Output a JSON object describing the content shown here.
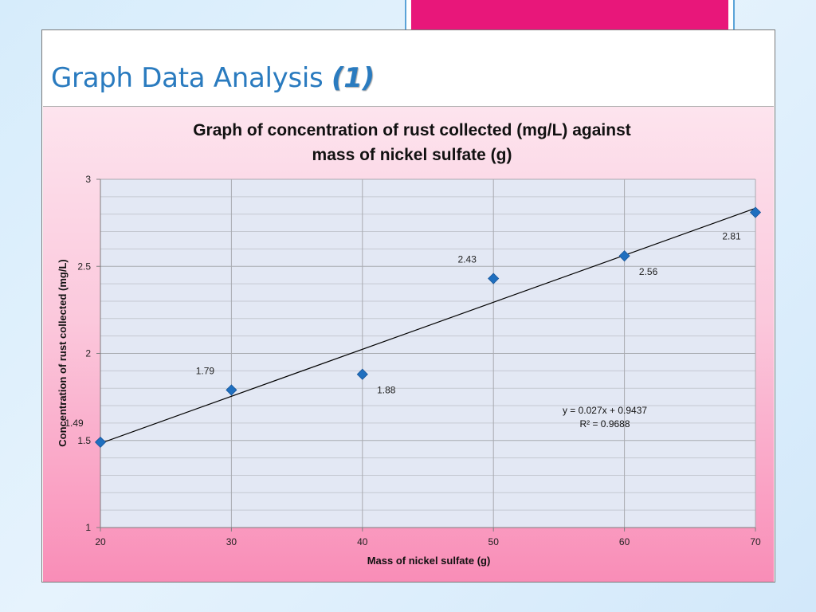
{
  "slide": {
    "title": "Graph Data Analysis",
    "title_number": "(1)",
    "accent_color": "#e8177a",
    "title_color": "#2a7bbf"
  },
  "chart_data": {
    "type": "scatter",
    "title_line1": "Graph of concentration of rust collected (mg/L) against",
    "title_line2": "mass of nickel sulfate (g)",
    "xlabel": "Mass of nickel sulfate (g)",
    "ylabel": "Concentration of rust collected (mg/L)",
    "xlim": [
      20,
      70
    ],
    "ylim": [
      1,
      3
    ],
    "x_ticks": [
      20,
      30,
      40,
      50,
      60,
      70
    ],
    "y_ticks": [
      1,
      1.5,
      2,
      2.5,
      3
    ],
    "y_minor_step": 0.1,
    "grid": true,
    "series": [
      {
        "x": [
          20,
          30,
          40,
          50,
          60,
          70
        ],
        "y": [
          1.49,
          1.79,
          1.88,
          2.43,
          2.56,
          2.81
        ],
        "labels": [
          "1.49",
          "1.79",
          "1.88",
          "2.43",
          "2.56",
          "2.81"
        ],
        "color": "#1f6fbf"
      }
    ],
    "trendline": {
      "slope": 0.027,
      "intercept": 0.9437,
      "equation": "y = 0.027x + 0.9437",
      "r2": "R² = 0.9688"
    }
  }
}
